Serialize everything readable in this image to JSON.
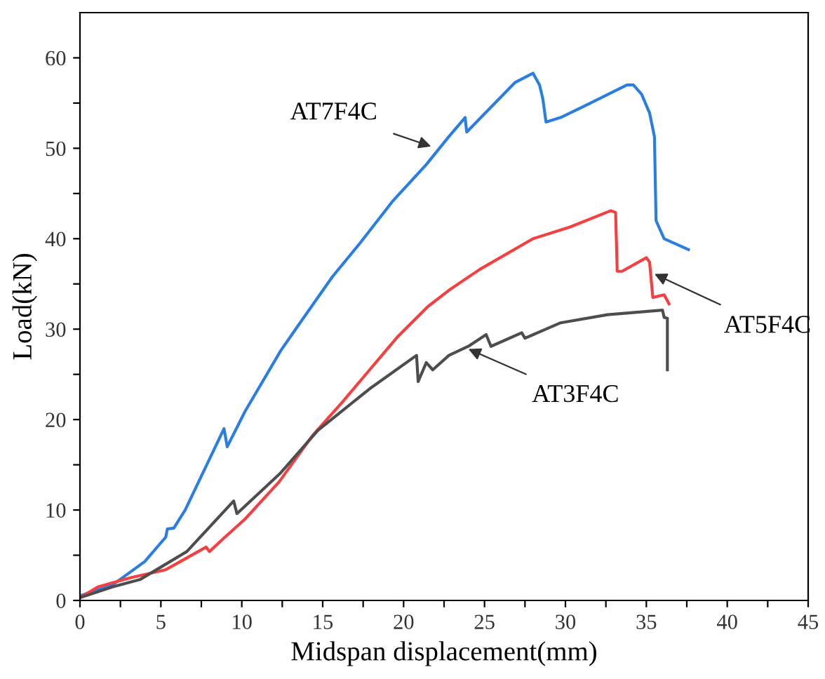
{
  "chart_data": {
    "type": "line",
    "xlabel": "Midspan displacement(mm)",
    "ylabel": "Load(kN)",
    "xlim": [
      0,
      45
    ],
    "xticks": [
      0,
      {
        "value": 2.5,
        "label": null
      },
      5,
      {
        "value": 7.5,
        "label": null
      },
      10,
      {
        "value": 12.5,
        "label": null
      },
      15,
      {
        "value": 17.5,
        "label": null
      },
      20,
      {
        "value": 22.5,
        "label": null
      },
      25,
      {
        "value": 27.5,
        "label": null
      },
      30,
      {
        "value": 32.5,
        "label": null
      },
      35,
      {
        "value": 37.5,
        "label": null
      },
      40,
      {
        "value": 42.5,
        "label": null
      },
      45
    ],
    "ylim": [
      0,
      65
    ],
    "yticks": [
      0,
      {
        "value": 5,
        "label": null
      },
      10,
      {
        "value": 15,
        "label": null
      },
      20,
      {
        "value": 25,
        "label": null
      },
      30,
      {
        "value": 35,
        "label": null
      },
      40,
      {
        "value": 45,
        "label": null
      },
      50,
      {
        "value": 55,
        "label": null
      },
      60
    ],
    "grid": false,
    "legend": false,
    "marker": "none",
    "line_style": "solid",
    "series": [
      {
        "color": "#2a7de1",
        "x": [
          0,
          2.0,
          4.0,
          5.3,
          5.4,
          5.8,
          6.5,
          8.9,
          9.1,
          10.2,
          12.4,
          13.6,
          15.6,
          17.3,
          19.3,
          21.4,
          22.8,
          23.8,
          23.9,
          26.9,
          28.0,
          28.4,
          28.6,
          28.8,
          29.7,
          31.2,
          33.8,
          34.2,
          34.7,
          35.2,
          35.5,
          35.6,
          36.1,
          37.6
        ],
        "values": [
          0.5,
          1.7,
          4.3,
          7.0,
          7.9,
          8.0,
          10.0,
          19.0,
          17.0,
          20.9,
          27.6,
          30.7,
          35.8,
          39.5,
          44.1,
          48.2,
          51.3,
          53.4,
          51.8,
          57.3,
          58.3,
          57.0,
          55.5,
          52.9,
          53.4,
          54.7,
          57.0,
          57.0,
          56.0,
          53.9,
          51.3,
          42.0,
          40.0,
          38.8
        ]
      },
      {
        "color": "#f44040",
        "x": [
          0,
          1.1,
          3.1,
          5.3,
          7.8,
          8.0,
          8.9,
          10.2,
          12.3,
          14.4,
          16.2,
          17.9,
          19.6,
          21.5,
          22.8,
          24.7,
          28.0,
          30.3,
          32.8,
          33.1,
          33.2,
          33.5,
          35.0,
          35.2,
          35.4,
          36.1,
          36.4
        ],
        "values": [
          0.3,
          1.5,
          2.5,
          3.4,
          5.9,
          5.4,
          6.9,
          9.0,
          13.1,
          18.3,
          21.9,
          25.5,
          29.1,
          32.5,
          34.3,
          36.6,
          40.0,
          41.3,
          43.1,
          42.9,
          36.4,
          36.4,
          37.9,
          37.4,
          33.5,
          33.8,
          32.8
        ]
      },
      {
        "color": "#4d4d4d",
        "x": [
          0,
          2.0,
          3.7,
          6.6,
          9.5,
          9.7,
          12.4,
          14.7,
          17.9,
          20.8,
          20.9,
          21.4,
          21.8,
          22.8,
          24.0,
          25.1,
          25.4,
          27.3,
          27.5,
          29.7,
          32.6,
          36.0,
          36.1,
          36.3,
          36.3
        ],
        "values": [
          0.3,
          1.5,
          2.3,
          5.4,
          11.0,
          9.6,
          14.1,
          18.8,
          23.4,
          27.1,
          24.2,
          26.3,
          25.5,
          27.1,
          28.1,
          29.4,
          28.1,
          29.6,
          29.0,
          30.7,
          31.6,
          32.1,
          31.3,
          31.2,
          25.5
        ]
      }
    ],
    "annotations": [
      {
        "text": "AT7F4C",
        "x": 21.7,
        "y": 50.2
      },
      {
        "text": "AT5F4C",
        "x": 35.5,
        "y": 36.1
      },
      {
        "text": "AT3F4C",
        "x": 24.0,
        "y": 27.8
      }
    ]
  }
}
